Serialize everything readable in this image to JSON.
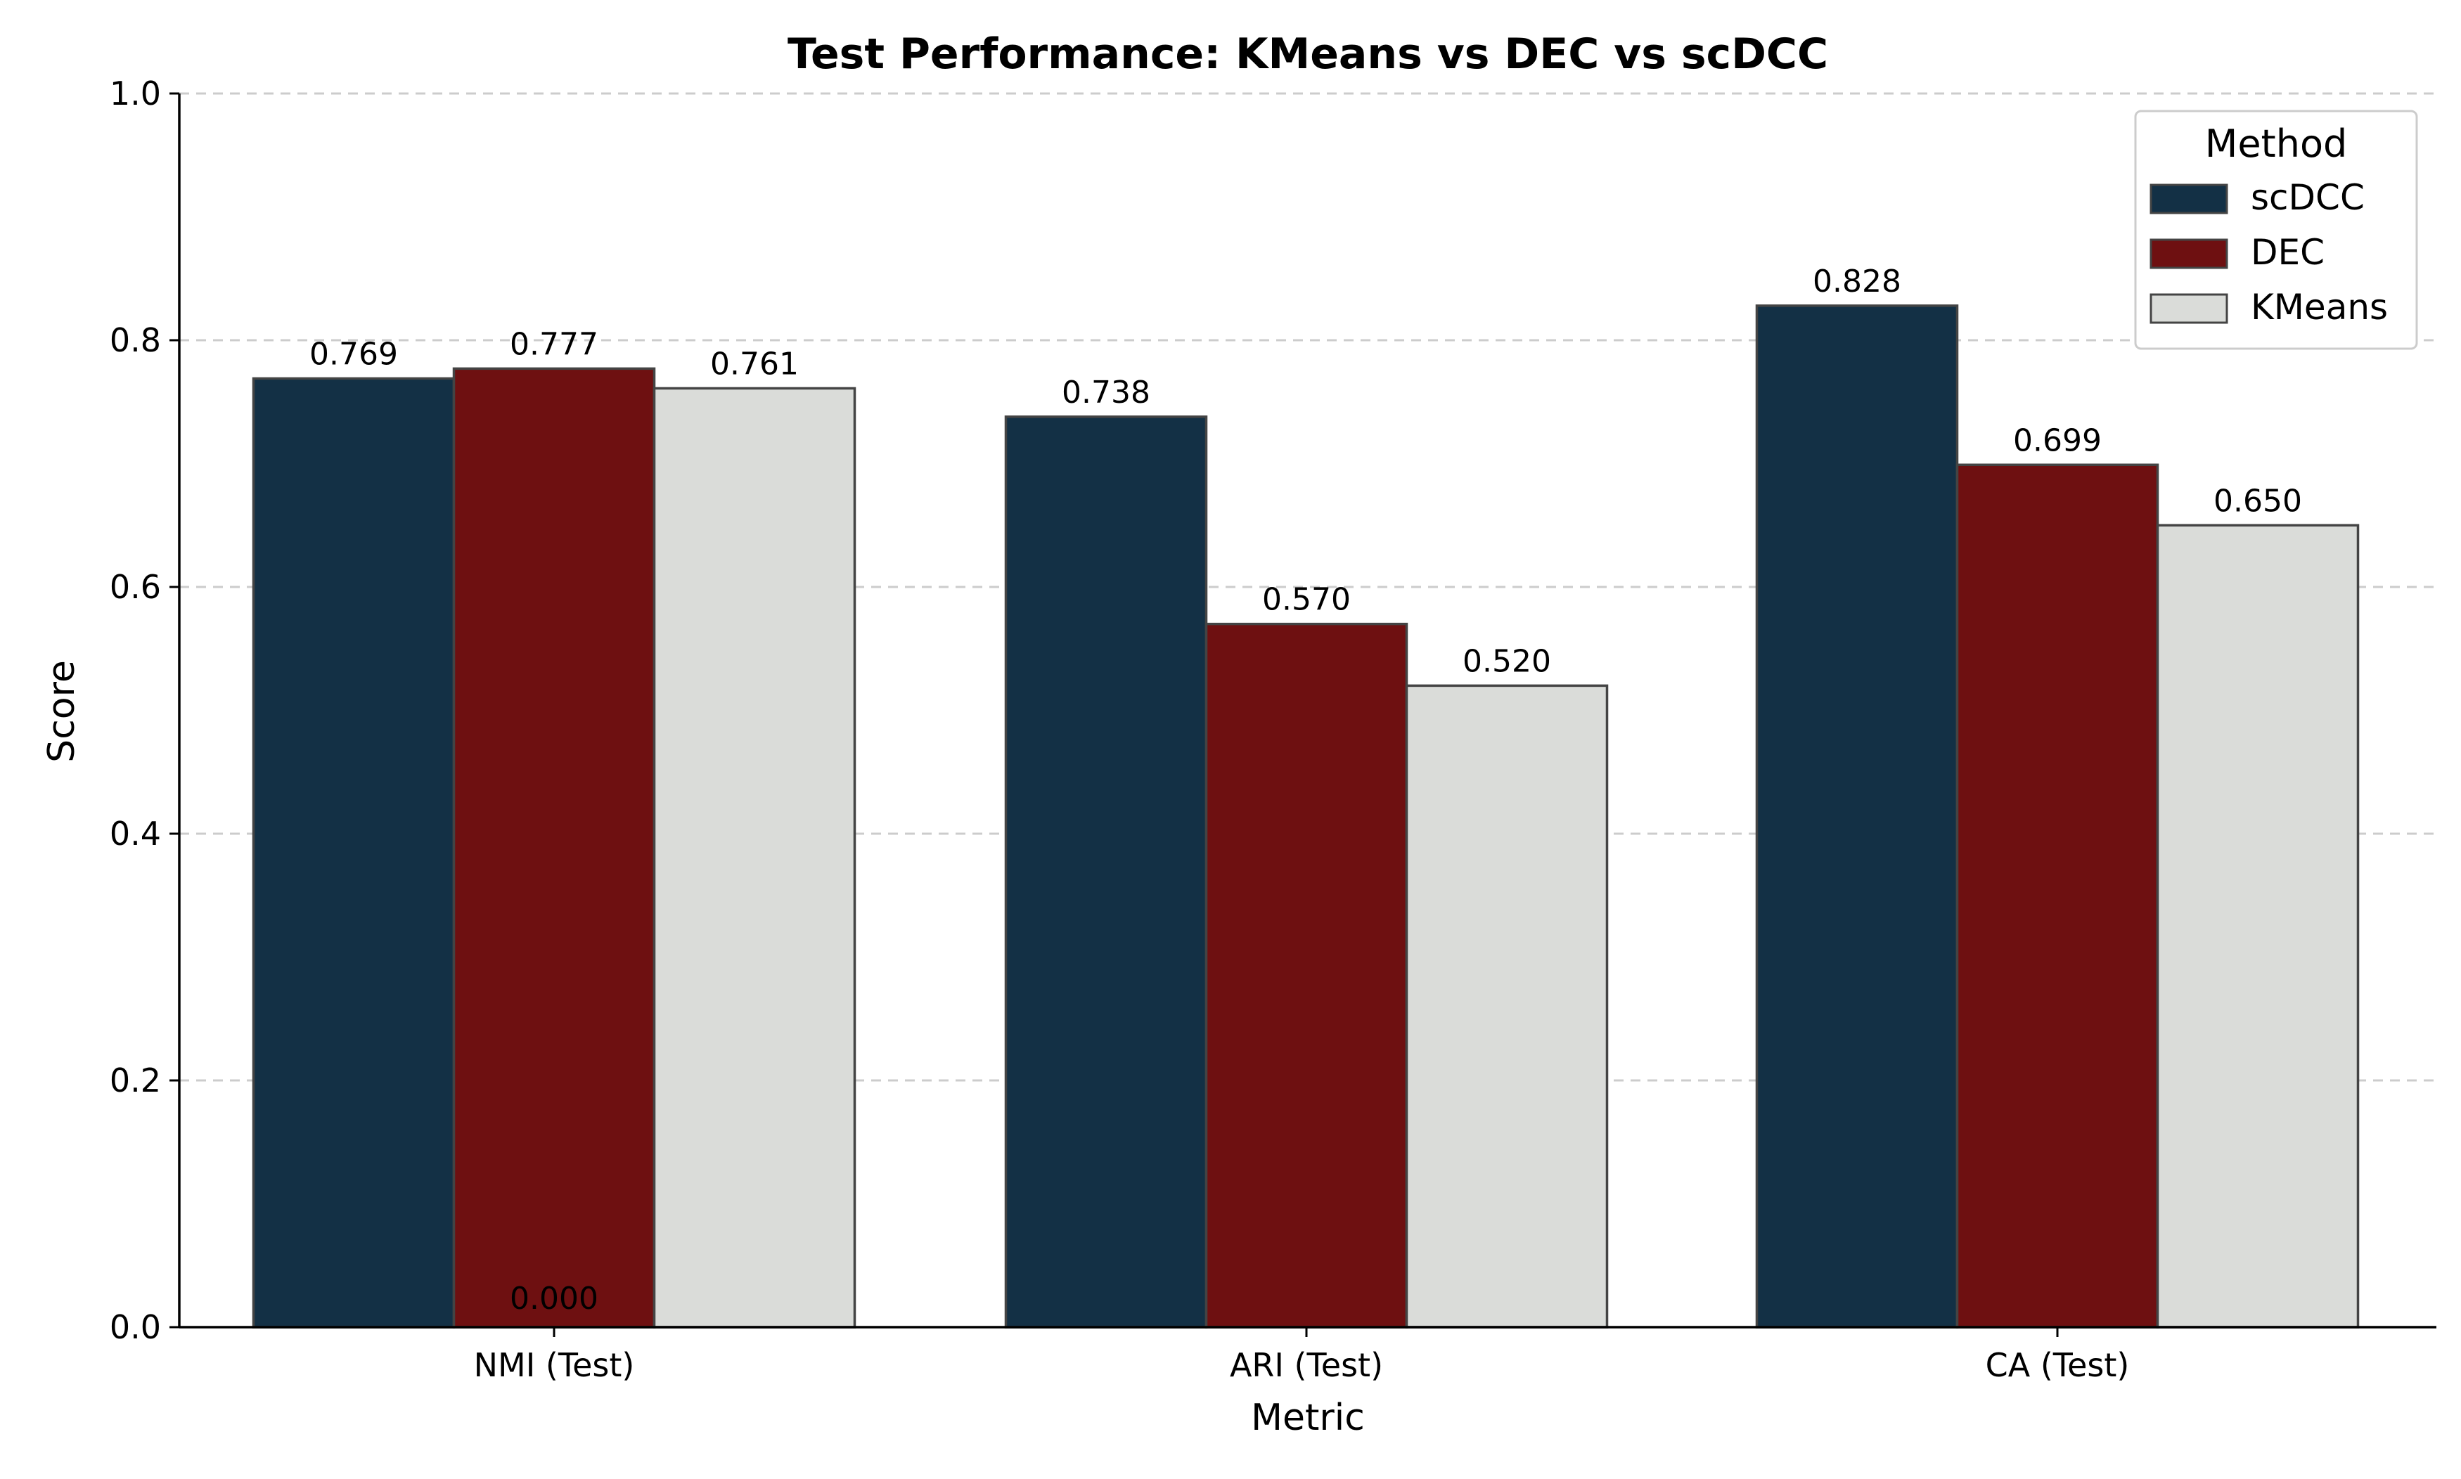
{
  "chart_data": {
    "type": "bar",
    "title": "Test Performance: KMeans vs DEC vs scDCC",
    "xlabel": "Metric",
    "ylabel": "Score",
    "ylim": [
      0,
      1.0
    ],
    "yticks": [
      "0.0",
      "0.2",
      "0.4",
      "0.6",
      "0.8",
      "1.0"
    ],
    "grid": "horizontal-dashed",
    "categories": [
      "NMI (Test)",
      "ARI (Test)",
      "CA (Test)"
    ],
    "series": [
      {
        "name": "scDCC",
        "color": "#133045",
        "values": [
          0.769,
          0.738,
          0.828
        ],
        "labels": [
          "0.769",
          "0.738",
          "0.828"
        ]
      },
      {
        "name": "DEC",
        "color": "#6e1011",
        "values": [
          0.777,
          0.57,
          0.699
        ],
        "labels": [
          "0.777",
          "0.570",
          "0.699"
        ]
      },
      {
        "name": "KMeans",
        "color": "#dadcd9",
        "values": [
          0.761,
          0.52,
          0.65
        ],
        "labels": [
          "0.761",
          "0.520",
          "0.650"
        ]
      }
    ],
    "extra_annotation": "0.000",
    "legend": {
      "title": "Method",
      "position": "top-right"
    }
  }
}
